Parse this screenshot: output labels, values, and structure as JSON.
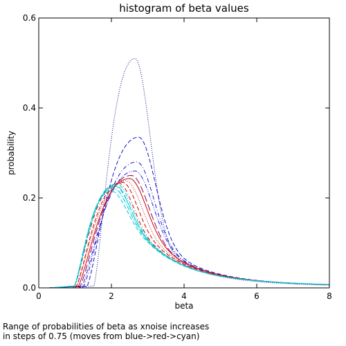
{
  "chart_data": {
    "type": "line",
    "title": "histogram of beta values",
    "xlabel": "beta",
    "ylabel": "probability",
    "xlim": [
      0,
      8
    ],
    "ylim": [
      0,
      0.6
    ],
    "xticks": [
      0,
      2,
      4,
      6,
      8
    ],
    "yticks": [
      0.0,
      0.2,
      0.4,
      0.6
    ],
    "ytick_labels": [
      "0.0",
      "0.2",
      "0.4",
      "0.6"
    ],
    "grid": false,
    "legend": "none",
    "series": [
      {
        "color": "#00008b",
        "dash": "dotted",
        "peak_x": 2.65,
        "peak_y": 0.51,
        "width": 0.55,
        "tail": 0.2,
        "onset": 1.5
      },
      {
        "color": "#1010c0",
        "dash": "dashed",
        "peak_x": 2.75,
        "peak_y": 0.335,
        "width": 0.6,
        "tail": 0.34,
        "onset": 1.3
      },
      {
        "color": "#1a1ad0",
        "dash": "dashdot",
        "peak_x": 2.7,
        "peak_y": 0.28,
        "width": 0.6,
        "tail": 0.4,
        "onset": 1.2
      },
      {
        "color": "#2020e0",
        "dash": "dashdotdot",
        "peak_x": 2.65,
        "peak_y": 0.26,
        "width": 0.62,
        "tail": 0.44,
        "onset": 1.15
      },
      {
        "color": "#800060",
        "dash": "longdash",
        "peak_x": 2.55,
        "peak_y": 0.25,
        "width": 0.6,
        "tail": 0.48,
        "onset": 1.1
      },
      {
        "color": "#cc0000",
        "dash": "solid",
        "peak_x": 2.5,
        "peak_y": 0.243,
        "width": 0.58,
        "tail": 0.52,
        "onset": 1.05
      },
      {
        "color": "#cc0000",
        "dash": "dotted",
        "peak_x": 2.4,
        "peak_y": 0.238,
        "width": 0.55,
        "tail": 0.55,
        "onset": 1.0
      },
      {
        "color": "#cc0000",
        "dash": "dashed",
        "peak_x": 2.3,
        "peak_y": 0.235,
        "width": 0.52,
        "tail": 0.58,
        "onset": 1.0
      },
      {
        "color": "#cc0000",
        "dash": "dashdot",
        "peak_x": 2.2,
        "peak_y": 0.233,
        "width": 0.5,
        "tail": 0.6,
        "onset": 0.95
      },
      {
        "color": "#00c8d0",
        "dash": "dashdotdot",
        "peak_x": 2.15,
        "peak_y": 0.231,
        "width": 0.5,
        "tail": 0.62,
        "onset": 0.95
      },
      {
        "color": "#00c8d0",
        "dash": "longdash",
        "peak_x": 2.1,
        "peak_y": 0.229,
        "width": 0.5,
        "tail": 0.64,
        "onset": 0.95
      },
      {
        "color": "#00c8d0",
        "dash": "dashed",
        "peak_x": 2.1,
        "peak_y": 0.226,
        "width": 0.5,
        "tail": 0.66,
        "onset": 0.95
      },
      {
        "color": "#00c8d0",
        "dash": "dashdot",
        "peak_x": 2.05,
        "peak_y": 0.223,
        "width": 0.5,
        "tail": 0.68,
        "onset": 0.95
      },
      {
        "color": "#00c8d0",
        "dash": "dotted",
        "peak_x": 2.05,
        "peak_y": 0.22,
        "width": 0.5,
        "tail": 0.7,
        "onset": 0.95
      },
      {
        "color": "#00c8d0",
        "dash": "dashed",
        "peak_x": 2.0,
        "peak_y": 0.215,
        "width": 0.5,
        "tail": 0.72,
        "onset": 0.95
      }
    ],
    "annotation_lines": [
      "Range of probabilities of beta as xnoise increases",
      "in steps of 0.75 (moves from blue->red->cyan)"
    ]
  }
}
